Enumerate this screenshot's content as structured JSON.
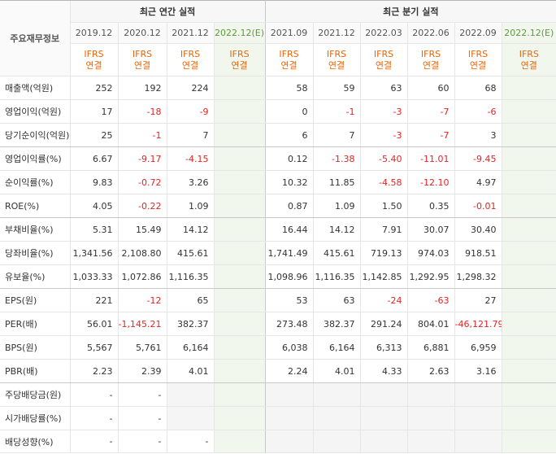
{
  "header": {
    "row_label": "주요재무정보",
    "annual_title": "최근 연간 실적",
    "quarterly_title": "최근 분기 실적",
    "annual_periods": [
      "2019.12",
      "2020.12",
      "2021.12",
      "2022.12(E)"
    ],
    "quarterly_periods": [
      "2021.09",
      "2021.12",
      "2022.03",
      "2022.06",
      "2022.09",
      "2022.12(E)"
    ],
    "standard_line1": "IFRS",
    "standard_line2": "연결"
  },
  "rows": [
    {
      "label": "매출액(억원)",
      "annual": [
        "252",
        "192",
        "224",
        ""
      ],
      "quarterly": [
        "58",
        "59",
        "63",
        "60",
        "68",
        ""
      ]
    },
    {
      "label": "영업이익(억원)",
      "annual": [
        "17",
        "-18",
        "-9",
        ""
      ],
      "quarterly": [
        "0",
        "-1",
        "-3",
        "-7",
        "-6",
        ""
      ]
    },
    {
      "label": "당기순이익(억원)",
      "annual": [
        "25",
        "-1",
        "7",
        ""
      ],
      "quarterly": [
        "6",
        "7",
        "-3",
        "-7",
        "3",
        ""
      ]
    },
    {
      "label": "영업이익률(%)",
      "annual": [
        "6.67",
        "-9.17",
        "-4.15",
        ""
      ],
      "quarterly": [
        "0.12",
        "-1.38",
        "-5.40",
        "-11.01",
        "-9.45",
        ""
      ]
    },
    {
      "label": "순이익률(%)",
      "annual": [
        "9.83",
        "-0.72",
        "3.26",
        ""
      ],
      "quarterly": [
        "10.32",
        "11.85",
        "-4.58",
        "-12.10",
        "4.97",
        ""
      ]
    },
    {
      "label": "ROE(%)",
      "annual": [
        "4.05",
        "-0.22",
        "1.09",
        ""
      ],
      "quarterly": [
        "0.87",
        "1.09",
        "1.50",
        "0.35",
        "-0.01",
        ""
      ]
    },
    {
      "label": "부채비율(%)",
      "annual": [
        "5.31",
        "15.49",
        "14.12",
        ""
      ],
      "quarterly": [
        "16.44",
        "14.12",
        "7.91",
        "30.07",
        "30.40",
        ""
      ]
    },
    {
      "label": "당좌비율(%)",
      "annual": [
        "1,341.56",
        "2,108.80",
        "415.61",
        ""
      ],
      "quarterly": [
        "1,741.49",
        "415.61",
        "719.13",
        "974.03",
        "918.51",
        ""
      ]
    },
    {
      "label": "유보율(%)",
      "annual": [
        "1,033.33",
        "1,072.86",
        "1,116.35",
        ""
      ],
      "quarterly": [
        "1,098.96",
        "1,116.35",
        "1,142.85",
        "1,292.95",
        "1,298.32",
        ""
      ]
    },
    {
      "label": "EPS(원)",
      "annual": [
        "221",
        "-12",
        "65",
        ""
      ],
      "quarterly": [
        "53",
        "63",
        "-24",
        "-63",
        "27",
        ""
      ]
    },
    {
      "label": "PER(배)",
      "annual": [
        "56.01",
        "-1,145.21",
        "382.37",
        ""
      ],
      "quarterly": [
        "273.48",
        "382.37",
        "291.24",
        "804.01",
        "-46,121.79",
        ""
      ]
    },
    {
      "label": "BPS(원)",
      "annual": [
        "5,567",
        "5,761",
        "6,164",
        ""
      ],
      "quarterly": [
        "6,038",
        "6,164",
        "6,313",
        "6,881",
        "6,959",
        ""
      ]
    },
    {
      "label": "PBR(배)",
      "annual": [
        "2.23",
        "2.39",
        "4.01",
        ""
      ],
      "quarterly": [
        "2.24",
        "4.01",
        "4.33",
        "2.63",
        "3.16",
        ""
      ]
    },
    {
      "label": "주당배당금(원)",
      "annual": [
        "-",
        "-",
        "",
        ""
      ],
      "quarterly": [
        "",
        "",
        "",
        "",
        "",
        ""
      ],
      "gray": true
    },
    {
      "label": "시가배당률(%)",
      "annual": [
        "-",
        "-",
        "",
        ""
      ],
      "quarterly": [
        "",
        "",
        "",
        "",
        "",
        ""
      ],
      "gray": true
    },
    {
      "label": "배당성향(%)",
      "annual": [
        "-",
        "-",
        "-",
        ""
      ],
      "quarterly": [
        "",
        "",
        "",
        "",
        "",
        ""
      ],
      "gray": true
    }
  ]
}
